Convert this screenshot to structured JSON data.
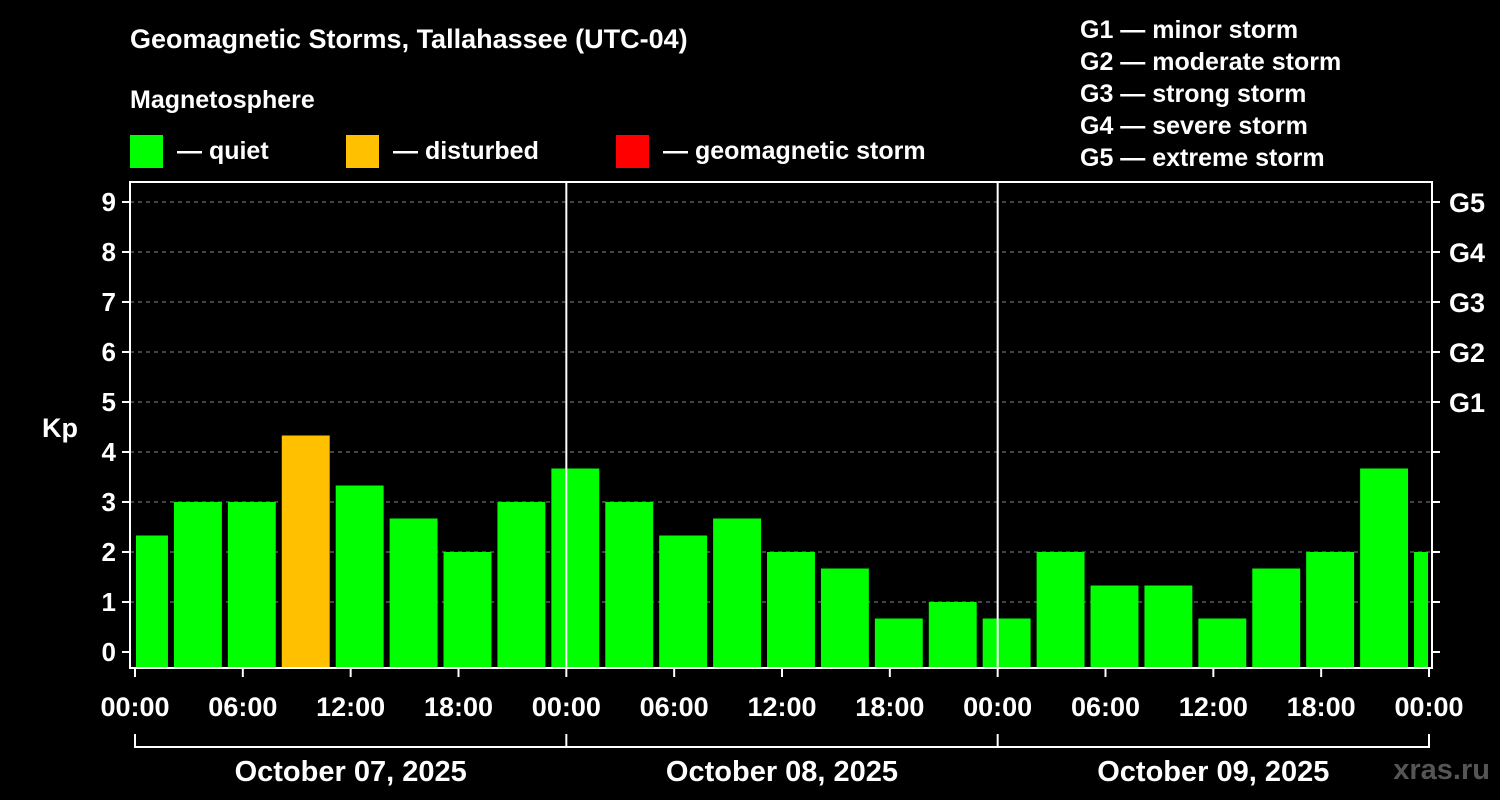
{
  "title": "Geomagnetic Storms, Tallahassee (UTC-04)",
  "subtitle": "Magnetosphere",
  "legend": [
    {
      "label": "— quiet",
      "color": "#00ff00"
    },
    {
      "label": "— disturbed",
      "color": "#ffc000"
    },
    {
      "label": "— geomagnetic storm",
      "color": "#ff0000"
    }
  ],
  "storm_levels": [
    "G1 — minor storm",
    "G2 — moderate storm",
    "G3 — strong storm",
    "G4 — severe storm",
    "G5 — extreme storm"
  ],
  "watermark": "xras.ru",
  "chart_data": {
    "type": "bar",
    "ylabel": "Kp",
    "ylim": [
      0,
      9
    ],
    "yticks": [
      "0",
      "1",
      "2",
      "3",
      "4",
      "5",
      "6",
      "7",
      "8",
      "9"
    ],
    "right_ticks": [
      {
        "kp": 5,
        "label": "G1"
      },
      {
        "kp": 6,
        "label": "G2"
      },
      {
        "kp": 7,
        "label": "G3"
      },
      {
        "kp": 8,
        "label": "G4"
      },
      {
        "kp": 9,
        "label": "G5"
      }
    ],
    "x_unit": "hours from start",
    "xlim": [
      0,
      72
    ],
    "xtick_labels": [
      "00:00",
      "06:00",
      "12:00",
      "18:00",
      "00:00",
      "06:00",
      "12:00",
      "18:00",
      "00:00",
      "06:00",
      "12:00",
      "18:00",
      "00:00"
    ],
    "dates": [
      "October 07, 2025",
      "October 08, 2025",
      "October 09, 2025"
    ],
    "colors": {
      "quiet": "#00ff00",
      "disturbed": "#ffc000",
      "storm": "#ff0000"
    },
    "bars": [
      {
        "start": 0,
        "end": 2,
        "kp": 2.33,
        "status": "quiet"
      },
      {
        "start": 2,
        "end": 5,
        "kp": 3.0,
        "status": "quiet"
      },
      {
        "start": 5,
        "end": 8,
        "kp": 3.0,
        "status": "quiet"
      },
      {
        "start": 8,
        "end": 11,
        "kp": 4.33,
        "status": "disturbed"
      },
      {
        "start": 11,
        "end": 14,
        "kp": 3.33,
        "status": "quiet"
      },
      {
        "start": 14,
        "end": 17,
        "kp": 2.67,
        "status": "quiet"
      },
      {
        "start": 17,
        "end": 20,
        "kp": 2.0,
        "status": "quiet"
      },
      {
        "start": 20,
        "end": 23,
        "kp": 3.0,
        "status": "quiet"
      },
      {
        "start": 23,
        "end": 26,
        "kp": 3.67,
        "status": "quiet"
      },
      {
        "start": 26,
        "end": 29,
        "kp": 3.0,
        "status": "quiet"
      },
      {
        "start": 29,
        "end": 32,
        "kp": 2.33,
        "status": "quiet"
      },
      {
        "start": 32,
        "end": 35,
        "kp": 2.67,
        "status": "quiet"
      },
      {
        "start": 35,
        "end": 38,
        "kp": 2.0,
        "status": "quiet"
      },
      {
        "start": 38,
        "end": 41,
        "kp": 1.67,
        "status": "quiet"
      },
      {
        "start": 41,
        "end": 44,
        "kp": 0.67,
        "status": "quiet"
      },
      {
        "start": 44,
        "end": 47,
        "kp": 1.0,
        "status": "quiet"
      },
      {
        "start": 47,
        "end": 50,
        "kp": 0.67,
        "status": "quiet"
      },
      {
        "start": 50,
        "end": 53,
        "kp": 2.0,
        "status": "quiet"
      },
      {
        "start": 53,
        "end": 56,
        "kp": 1.33,
        "status": "quiet"
      },
      {
        "start": 56,
        "end": 59,
        "kp": 1.33,
        "status": "quiet"
      },
      {
        "start": 59,
        "end": 62,
        "kp": 0.67,
        "status": "quiet"
      },
      {
        "start": 62,
        "end": 65,
        "kp": 1.67,
        "status": "quiet"
      },
      {
        "start": 65,
        "end": 68,
        "kp": 2.0,
        "status": "quiet"
      },
      {
        "start": 68,
        "end": 71,
        "kp": 3.67,
        "status": "quiet"
      },
      {
        "start": 71,
        "end": 72,
        "kp": 2.0,
        "status": "quiet"
      }
    ]
  }
}
